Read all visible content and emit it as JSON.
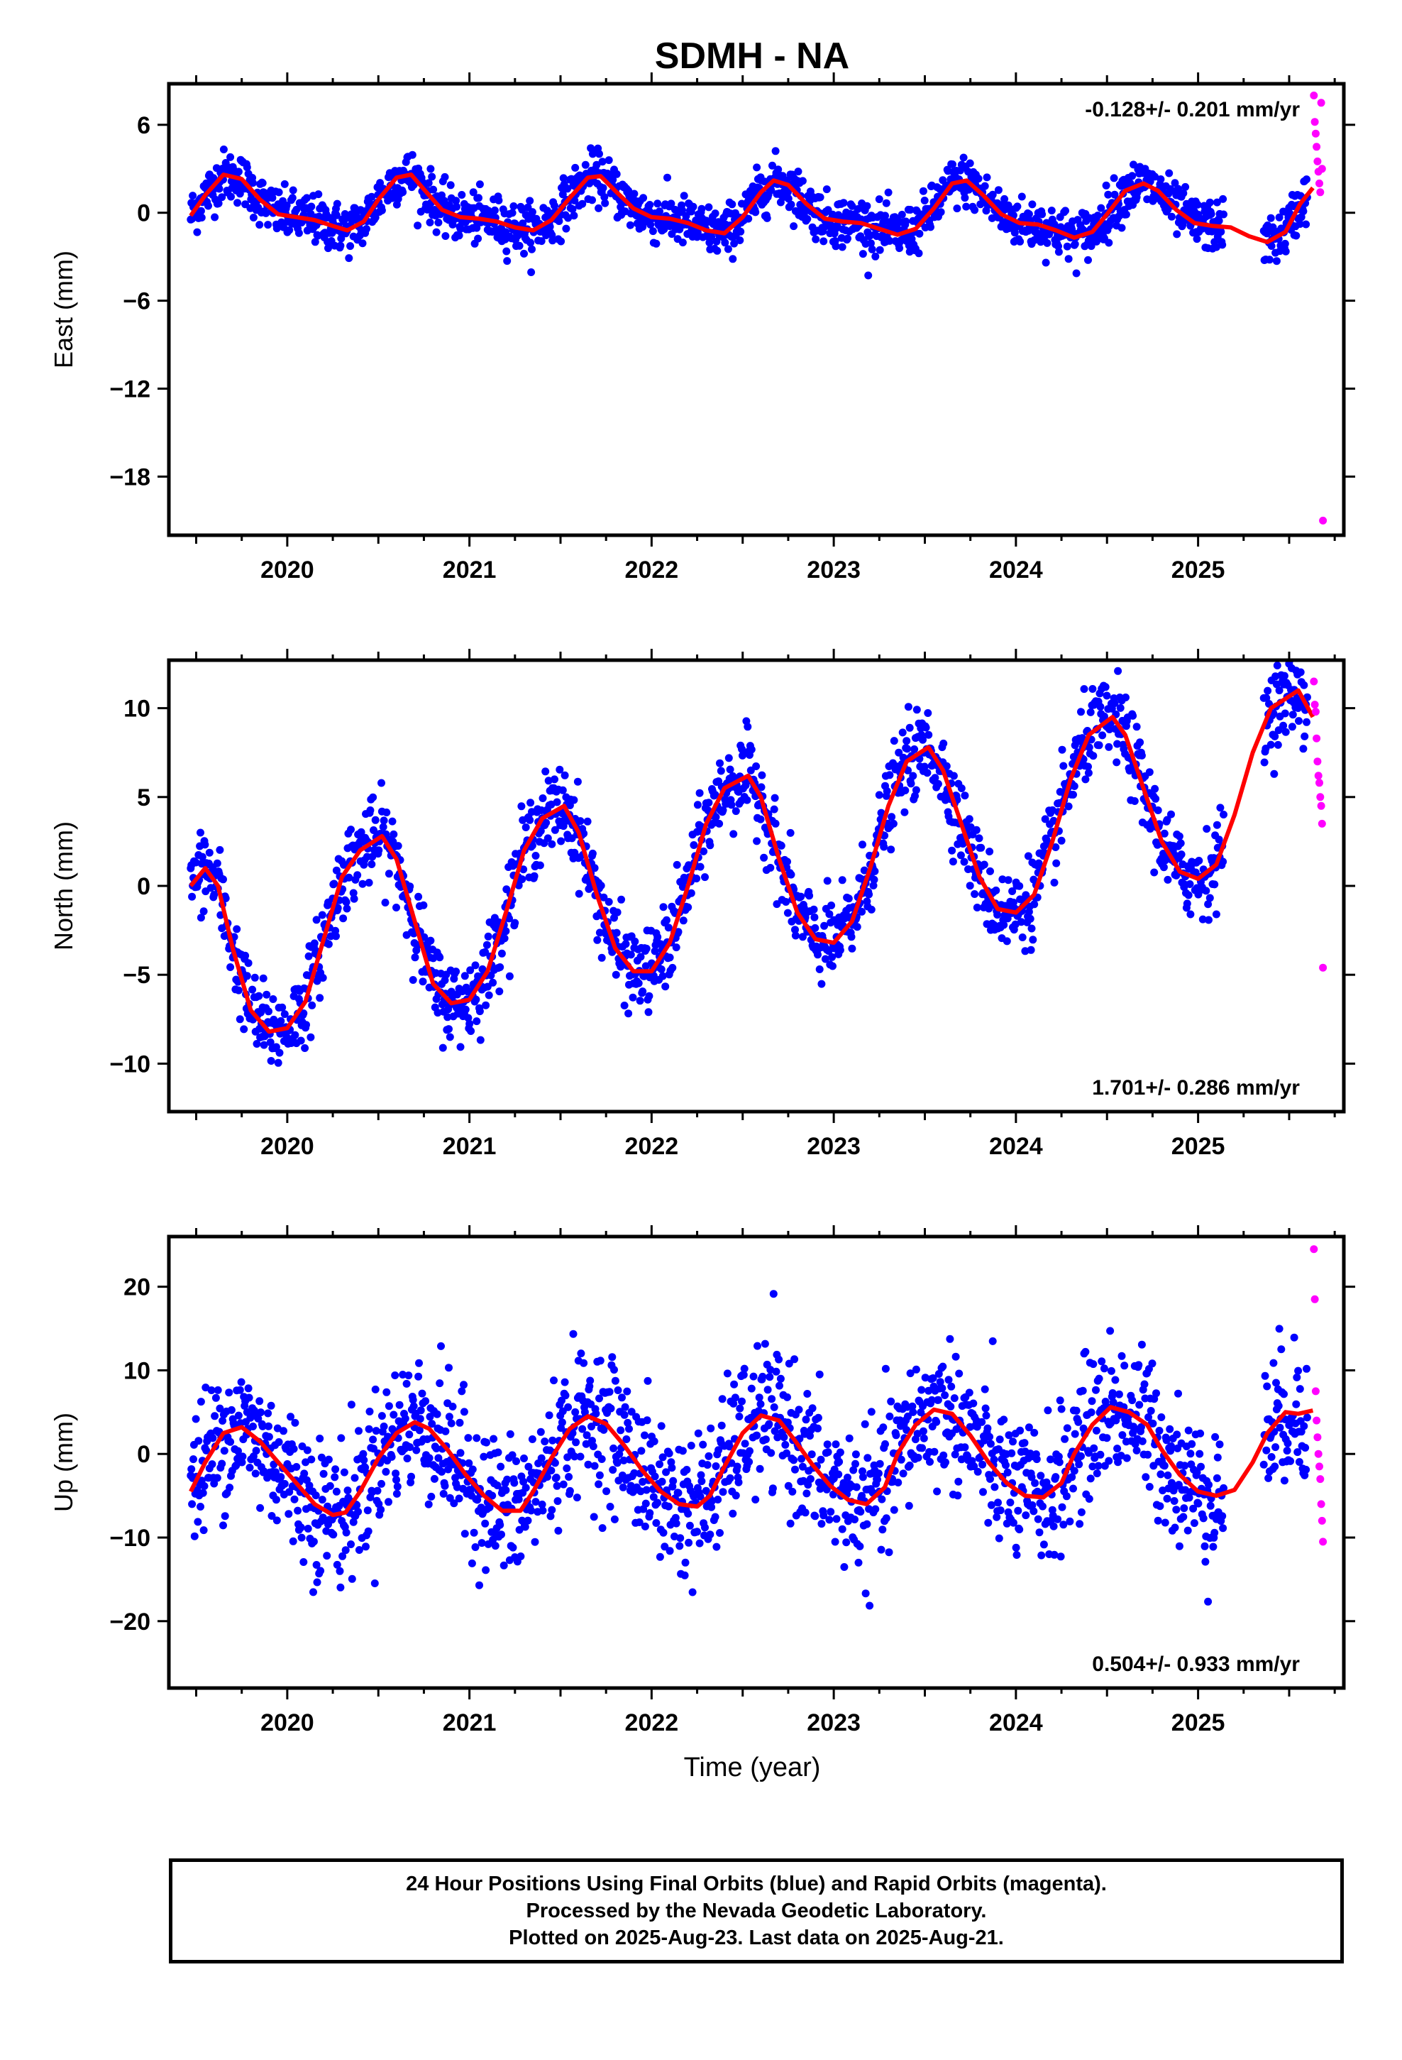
{
  "title": "SDMH - NA",
  "xlabel": "Time (year)",
  "colors": {
    "final": "#0000ff",
    "rapid": "#ff00ff",
    "model": "#ff0000",
    "frame": "#000000"
  },
  "footer": {
    "line1": "24 Hour Positions Using Final Orbits (blue) and Rapid Orbits (magenta).",
    "line2": "Processed by the Nevada Geodetic Laboratory.",
    "line3": "Plotted on 2025-Aug-23. Last data on 2025-Aug-21."
  },
  "chart_data": [
    {
      "type": "scatter",
      "ylabel": "East (mm)",
      "rate_label": "-0.128+/- 0.201 mm/yr",
      "rate_position": "top-right",
      "xlim": [
        2019.35,
        2025.8
      ],
      "ylim": [
        -22,
        8.8
      ],
      "xticks": [
        2020,
        2021,
        2022,
        2023,
        2024,
        2025
      ],
      "xtick_labels": [
        "2020",
        "2021",
        "2022",
        "2023",
        "2024",
        "2025"
      ],
      "yticks": [
        -18,
        -12,
        -6,
        0,
        6
      ],
      "ytick_labels": [
        "−18",
        "−12",
        "−6",
        "0",
        "6"
      ],
      "model": {
        "x": [
          2019.47,
          2019.55,
          2019.65,
          2019.75,
          2019.85,
          2019.95,
          2020.05,
          2020.15,
          2020.25,
          2020.33,
          2020.42,
          2020.5,
          2020.6,
          2020.68,
          2020.75,
          2020.85,
          2020.95,
          2021.05,
          2021.15,
          2021.25,
          2021.35,
          2021.45,
          2021.55,
          2021.65,
          2021.72,
          2021.8,
          2021.9,
          2022.0,
          2022.1,
          2022.2,
          2022.3,
          2022.4,
          2022.5,
          2022.6,
          2022.67,
          2022.75,
          2022.85,
          2022.95,
          2023.05,
          2023.15,
          2023.25,
          2023.35,
          2023.45,
          2023.55,
          2023.65,
          2023.73,
          2023.82,
          2023.92,
          2024.02,
          2024.12,
          2024.22,
          2024.32,
          2024.42,
          2024.5,
          2024.6,
          2024.7,
          2024.78,
          2024.88,
          2024.98,
          2025.08,
          2025.18,
          2025.28,
          2025.38,
          2025.48,
          2025.56,
          2025.63
        ],
        "y": [
          -0.2,
          1.2,
          2.6,
          2.3,
          0.9,
          -0.1,
          -0.3,
          -0.5,
          -0.9,
          -1.2,
          -0.6,
          0.9,
          2.4,
          2.6,
          1.6,
          0.2,
          -0.3,
          -0.4,
          -0.6,
          -1.0,
          -1.2,
          -0.5,
          1.0,
          2.4,
          2.5,
          1.5,
          0.3,
          -0.3,
          -0.4,
          -0.7,
          -1.2,
          -1.4,
          -0.3,
          1.4,
          2.2,
          1.9,
          0.6,
          -0.4,
          -0.6,
          -0.7,
          -1.1,
          -1.5,
          -1.1,
          0.3,
          2.0,
          2.2,
          1.2,
          -0.1,
          -0.7,
          -0.8,
          -1.2,
          -1.7,
          -1.3,
          -0.1,
          1.5,
          2.0,
          1.5,
          0.2,
          -0.7,
          -0.9,
          -1.0,
          -1.6,
          -2.0,
          -1.3,
          0.6,
          1.7
        ]
      },
      "rapid": {
        "x": [
          2025.62,
          2025.625,
          2025.63,
          2025.635,
          2025.64,
          2025.645,
          2025.65,
          2025.655,
          2025.66,
          2025.665,
          2025.67
        ],
        "y": [
          8.0,
          6.2,
          5.4,
          4.5,
          3.5,
          2.8,
          2.0,
          1.4,
          7.5,
          3.0,
          -21.0
        ]
      }
    },
    {
      "type": "scatter",
      "ylabel": "North (mm)",
      "rate_label": "1.701+/- 0.286 mm/yr",
      "rate_position": "bottom-right",
      "xlim": [
        2019.35,
        2025.8
      ],
      "ylim": [
        -12.7,
        12.7
      ],
      "xticks": [
        2020,
        2021,
        2022,
        2023,
        2024,
        2025
      ],
      "xtick_labels": [
        "2020",
        "2021",
        "2022",
        "2023",
        "2024",
        "2025"
      ],
      "yticks": [
        -10,
        -5,
        0,
        5,
        10
      ],
      "ytick_labels": [
        "−10",
        "−5",
        "0",
        "5",
        "10"
      ],
      "model": {
        "x": [
          2019.47,
          2019.55,
          2019.62,
          2019.7,
          2019.8,
          2019.9,
          2020.0,
          2020.1,
          2020.2,
          2020.3,
          2020.4,
          2020.52,
          2020.6,
          2020.7,
          2020.8,
          2020.9,
          2021.0,
          2021.1,
          2021.2,
          2021.3,
          2021.4,
          2021.52,
          2021.6,
          2021.7,
          2021.8,
          2021.9,
          2022.0,
          2022.1,
          2022.2,
          2022.3,
          2022.4,
          2022.53,
          2022.6,
          2022.7,
          2022.8,
          2022.9,
          2023.0,
          2023.1,
          2023.2,
          2023.3,
          2023.4,
          2023.52,
          2023.6,
          2023.7,
          2023.8,
          2023.9,
          2024.0,
          2024.1,
          2024.2,
          2024.3,
          2024.4,
          2024.53,
          2024.6,
          2024.7,
          2024.8,
          2024.9,
          2025.0,
          2025.1,
          2025.2,
          2025.3,
          2025.4,
          2025.55,
          2025.63
        ],
        "y": [
          0.0,
          1.0,
          0.0,
          -3.5,
          -7.0,
          -8.2,
          -8.0,
          -6.5,
          -3.0,
          0.5,
          2.0,
          2.8,
          1.5,
          -2.0,
          -5.5,
          -6.6,
          -6.4,
          -4.8,
          -1.5,
          2.0,
          3.8,
          4.5,
          3.0,
          -0.5,
          -3.5,
          -4.8,
          -4.8,
          -3.2,
          0.0,
          3.5,
          5.5,
          6.2,
          5.0,
          1.5,
          -1.5,
          -3.0,
          -3.2,
          -2.0,
          1.0,
          4.5,
          7.0,
          7.8,
          6.5,
          3.5,
          0.5,
          -1.3,
          -1.5,
          -0.5,
          2.5,
          6.0,
          8.5,
          9.5,
          8.5,
          5.5,
          2.5,
          0.8,
          0.4,
          1.2,
          4.0,
          7.5,
          10.0,
          11.0,
          9.5
        ]
      },
      "rapid": {
        "x": [
          2025.62,
          2025.625,
          2025.63,
          2025.635,
          2025.64,
          2025.645,
          2025.65,
          2025.655,
          2025.66,
          2025.665,
          2025.67
        ],
        "y": [
          11.5,
          10.2,
          9.8,
          8.3,
          7.0,
          6.2,
          5.8,
          5.0,
          4.5,
          3.5,
          -4.6
        ]
      }
    },
    {
      "type": "scatter",
      "ylabel": "Up (mm)",
      "rate_label": "0.504+/- 0.933 mm/yr",
      "rate_position": "bottom-right",
      "xlim": [
        2019.35,
        2025.8
      ],
      "ylim": [
        -28,
        26
      ],
      "xticks": [
        2020,
        2021,
        2022,
        2023,
        2024,
        2025
      ],
      "xtick_labels": [
        "2020",
        "2021",
        "2022",
        "2023",
        "2024",
        "2025"
      ],
      "yticks": [
        -20,
        -10,
        0,
        10,
        20
      ],
      "ytick_labels": [
        "−20",
        "−10",
        "0",
        "10",
        "20"
      ],
      "model": {
        "x": [
          2019.47,
          2019.55,
          2019.65,
          2019.75,
          2019.85,
          2019.95,
          2020.05,
          2020.15,
          2020.25,
          2020.32,
          2020.4,
          2020.5,
          2020.6,
          2020.7,
          2020.78,
          2020.88,
          2020.98,
          2021.08,
          2021.18,
          2021.28,
          2021.35,
          2021.45,
          2021.55,
          2021.65,
          2021.75,
          2021.85,
          2021.95,
          2022.05,
          2022.15,
          2022.25,
          2022.32,
          2022.4,
          2022.5,
          2022.6,
          2022.7,
          2022.78,
          2022.88,
          2022.98,
          2023.08,
          2023.18,
          2023.28,
          2023.35,
          2023.45,
          2023.55,
          2023.65,
          2023.75,
          2023.85,
          2023.95,
          2024.05,
          2024.15,
          2024.25,
          2024.32,
          2024.42,
          2024.52,
          2024.62,
          2024.72,
          2024.8,
          2024.9,
          2025.0,
          2025.1,
          2025.2,
          2025.3,
          2025.38,
          2025.48,
          2025.55,
          2025.63
        ],
        "y": [
          -4.5,
          -1.0,
          2.5,
          3.2,
          1.5,
          -1.0,
          -3.5,
          -6.0,
          -7.3,
          -7.0,
          -4.5,
          -0.5,
          2.5,
          3.8,
          3.0,
          0.5,
          -2.5,
          -5.0,
          -6.8,
          -6.8,
          -4.5,
          -0.5,
          3.0,
          4.5,
          3.6,
          1.0,
          -2.0,
          -4.5,
          -6.0,
          -6.3,
          -5.0,
          -1.5,
          2.5,
          4.6,
          4.0,
          1.8,
          -1.2,
          -3.8,
          -5.5,
          -6.0,
          -4.0,
          0.0,
          3.5,
          5.3,
          4.8,
          2.2,
          -1.0,
          -3.5,
          -5.0,
          -5.2,
          -3.5,
          0.0,
          3.5,
          5.6,
          5.0,
          3.5,
          0.5,
          -2.5,
          -4.5,
          -5.0,
          -4.3,
          -1.0,
          2.5,
          5.0,
          4.8,
          5.2
        ]
      },
      "rapid": {
        "x": [
          2025.62,
          2025.625,
          2025.63,
          2025.635,
          2025.64,
          2025.645,
          2025.65,
          2025.655,
          2025.66,
          2025.665,
          2025.67
        ],
        "y": [
          24.5,
          18.5,
          7.5,
          4.0,
          2.0,
          0.0,
          -1.5,
          -3.0,
          -6.0,
          -8.0,
          -10.5
        ]
      }
    }
  ]
}
